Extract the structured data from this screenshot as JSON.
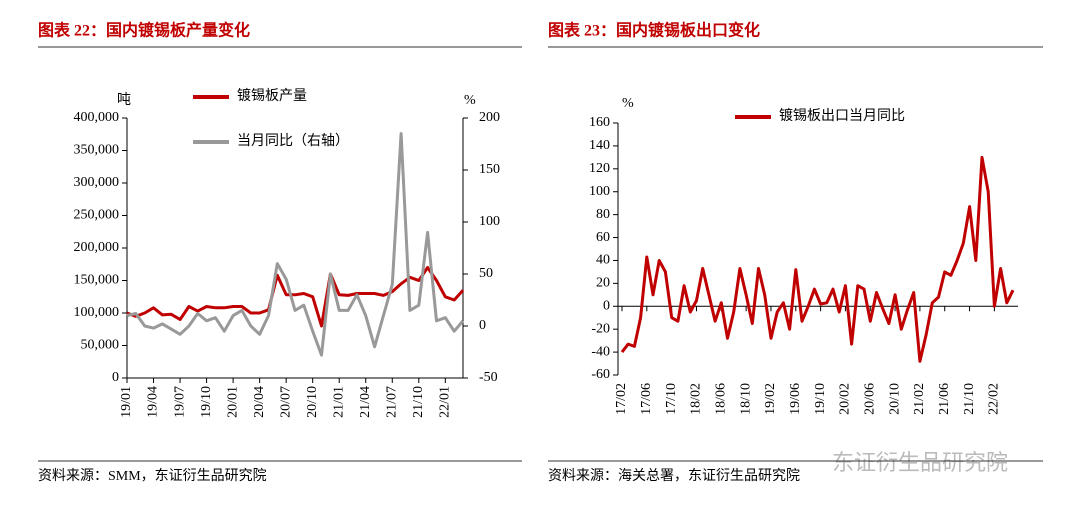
{
  "chart_data": [
    {
      "type": "line",
      "title": "图表 22：国内镀锡板产量变化",
      "source": "资料来源：SMM，东证衍生品研究院",
      "y_label": "吨",
      "y2_label": "%",
      "ylim": [
        0,
        400000
      ],
      "yticks": [
        0,
        {
          "value": 50000,
          "label": "50,000"
        },
        {
          "value": 100000,
          "label": "100,000"
        },
        {
          "value": 150000,
          "label": "150,000"
        },
        {
          "value": 200000,
          "label": "200,000"
        },
        {
          "value": 250000,
          "label": "250,000"
        },
        {
          "value": 300000,
          "label": "300,000"
        },
        {
          "value": 350000,
          "label": "350,000"
        },
        {
          "value": 400000,
          "label": "400,000"
        }
      ],
      "y2lim": [
        -50,
        200
      ],
      "y2ticks": [
        -50,
        0,
        50,
        100,
        150,
        200
      ],
      "categories": [
        "19/01",
        null,
        null,
        "19/04",
        null,
        null,
        "19/07",
        null,
        null,
        "19/10",
        null,
        null,
        "20/01",
        null,
        null,
        "20/04",
        null,
        null,
        "20/07",
        null,
        null,
        "20/10",
        null,
        null,
        "21/01",
        null,
        null,
        "21/04",
        null,
        null,
        "21/07",
        null,
        null,
        "21/10",
        null,
        null,
        "22/01",
        null,
        null
      ],
      "series": [
        {
          "name": "镀锡板产量",
          "color": "#c00000",
          "values": [
            100000,
            95000,
            100000,
            108000,
            97000,
            98000,
            90000,
            110000,
            103000,
            110000,
            108000,
            108000,
            110000,
            110000,
            100000,
            100000,
            105000,
            158000,
            128000,
            128000,
            130000,
            125000,
            80000,
            160000,
            128000,
            127000,
            130000,
            130000,
            130000,
            127000,
            133000,
            145000,
            155000,
            150000,
            170000,
            150000,
            125000,
            120000,
            135000
          ]
        },
        {
          "name": "当月同比（右轴）",
          "color": "#999999",
          "axis": "y2",
          "values": [
            10,
            12,
            0,
            -2,
            2,
            -3,
            -8,
            0,
            12,
            5,
            8,
            -5,
            10,
            15,
            0,
            -8,
            10,
            60,
            45,
            15,
            20,
            -5,
            -28,
            50,
            15,
            15,
            30,
            10,
            -20,
            10,
            40,
            185,
            15,
            20,
            90,
            5,
            8,
            -5,
            5
          ]
        }
      ]
    },
    {
      "type": "line",
      "title": "图表 23：国内镀锡板出口变化",
      "source": "资料来源：海关总署，东证衍生品研究院",
      "y_label": "%",
      "ylim": [
        -60,
        160
      ],
      "yticks": [
        -60,
        -40,
        -20,
        0,
        20,
        40,
        60,
        80,
        100,
        120,
        140,
        160
      ],
      "categories": [
        "17/02",
        null,
        null,
        null,
        "17/06",
        null,
        null,
        null,
        "17/10",
        null,
        null,
        null,
        "18/02",
        null,
        null,
        null,
        "18/06",
        null,
        null,
        null,
        "18/10",
        null,
        null,
        null,
        "19/02",
        null,
        null,
        null,
        "19/06",
        null,
        null,
        null,
        "19/10",
        null,
        null,
        null,
        "20/02",
        null,
        null,
        null,
        "20/06",
        null,
        null,
        null,
        "20/10",
        null,
        null,
        null,
        "21/02",
        null,
        null,
        null,
        "21/06",
        null,
        null,
        null,
        "21/10",
        null,
        null,
        null,
        "22/02",
        null,
        null,
        null
      ],
      "series": [
        {
          "name": "镀锡板出口当月同比",
          "color": "#c00000",
          "values": [
            -40,
            -33,
            -35,
            -10,
            43,
            10,
            40,
            30,
            -10,
            -13,
            18,
            -5,
            5,
            33,
            10,
            -13,
            3,
            -28,
            -5,
            33,
            10,
            -15,
            33,
            10,
            -28,
            -5,
            3,
            -20,
            32,
            -13,
            0,
            15,
            2,
            3,
            15,
            -5,
            18,
            -33,
            18,
            15,
            -13,
            12,
            -2,
            -15,
            10,
            -20,
            -3,
            12,
            -48,
            -25,
            3,
            8,
            30,
            27,
            40,
            55,
            87,
            40,
            130,
            100,
            0,
            33,
            3,
            14
          ]
        }
      ]
    }
  ],
  "watermark": "东证衍生品研究院"
}
